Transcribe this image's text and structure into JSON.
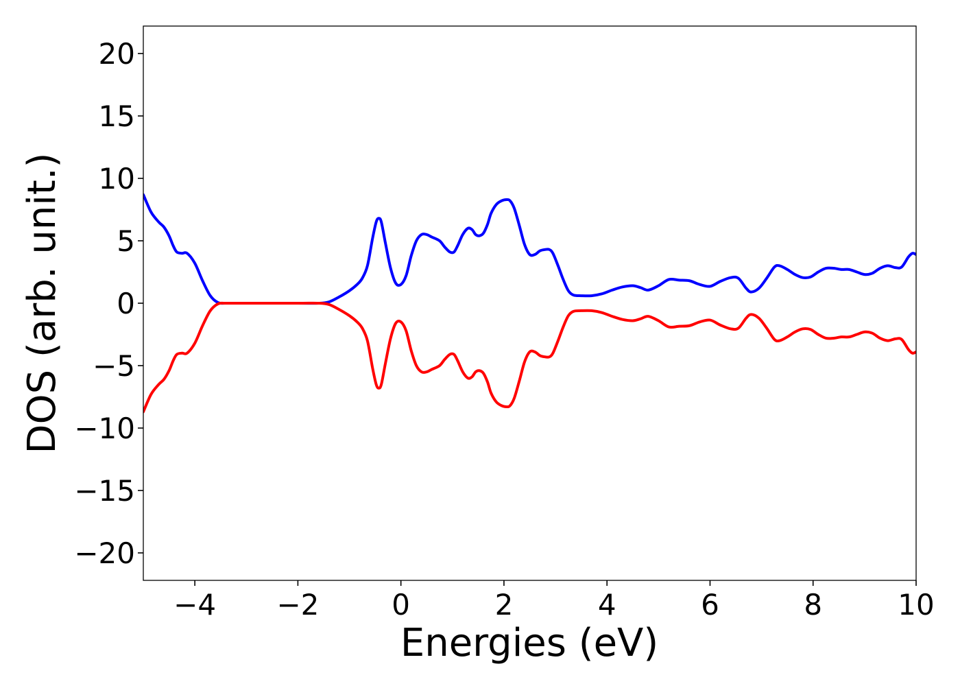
{
  "chart_data": {
    "type": "line",
    "xlabel": "Energies (eV)",
    "ylabel": "DOS (arb. unit.)",
    "xlim": [
      -5,
      10
    ],
    "ylim": [
      -22.2,
      22.2
    ],
    "xticks": [
      -4,
      -2,
      0,
      2,
      4,
      6,
      8,
      10
    ],
    "yticks": [
      20,
      15,
      10,
      5,
      0,
      -5,
      -10,
      -15,
      -20
    ],
    "xtick_labels": [
      "−4",
      "−2",
      "0",
      "2",
      "4",
      "6",
      "8",
      "10"
    ],
    "ytick_labels": [
      "20",
      "15",
      "10",
      "5",
      "0",
      "−5",
      "−10",
      "−15",
      "−20"
    ],
    "grid": false,
    "legend": "none",
    "series": [
      {
        "color": "#0000ff",
        "x": [
          -5.0,
          -4.85,
          -4.7,
          -4.6,
          -4.5,
          -4.42,
          -4.35,
          -4.25,
          -4.15,
          -4.0,
          -3.85,
          -3.7,
          -3.55,
          -3.4,
          -3.0,
          -2.0,
          -1.6,
          -1.4,
          -1.2,
          -1.0,
          -0.85,
          -0.75,
          -0.65,
          -0.55,
          -0.48,
          -0.43,
          -0.38,
          -0.3,
          -0.2,
          -0.1,
          0.0,
          0.1,
          0.2,
          0.3,
          0.4,
          0.5,
          0.6,
          0.75,
          0.85,
          0.95,
          1.03,
          1.1,
          1.2,
          1.3,
          1.38,
          1.45,
          1.52,
          1.6,
          1.68,
          1.75,
          1.85,
          1.95,
          2.05,
          2.12,
          2.2,
          2.3,
          2.4,
          2.5,
          2.6,
          2.7,
          2.8,
          2.88,
          2.95,
          3.05,
          3.15,
          3.25,
          3.35,
          3.5,
          3.7,
          3.9,
          4.1,
          4.3,
          4.5,
          4.65,
          4.8,
          5.0,
          5.2,
          5.4,
          5.6,
          5.8,
          6.0,
          6.2,
          6.4,
          6.55,
          6.7,
          6.8,
          6.95,
          7.1,
          7.25,
          7.35,
          7.5,
          7.65,
          7.8,
          7.95,
          8.1,
          8.25,
          8.4,
          8.55,
          8.7,
          8.85,
          9.0,
          9.15,
          9.3,
          9.45,
          9.6,
          9.72,
          9.85,
          9.93,
          10.0
        ],
        "y": [
          8.7,
          7.3,
          6.5,
          6.1,
          5.4,
          4.6,
          4.1,
          4.0,
          4.0,
          3.2,
          1.8,
          0.6,
          0.05,
          0.0,
          0.0,
          0.0,
          0.0,
          0.1,
          0.5,
          1.0,
          1.5,
          2.0,
          3.0,
          5.2,
          6.5,
          6.8,
          6.5,
          4.8,
          2.8,
          1.6,
          1.5,
          2.2,
          3.8,
          5.0,
          5.5,
          5.5,
          5.3,
          5.0,
          4.5,
          4.1,
          4.1,
          4.6,
          5.5,
          6.0,
          5.9,
          5.5,
          5.4,
          5.6,
          6.3,
          7.2,
          7.9,
          8.2,
          8.3,
          8.2,
          7.6,
          6.2,
          4.7,
          3.9,
          3.9,
          4.2,
          4.3,
          4.3,
          4.0,
          3.0,
          1.9,
          1.0,
          0.65,
          0.6,
          0.6,
          0.75,
          1.05,
          1.3,
          1.4,
          1.25,
          1.05,
          1.4,
          1.9,
          1.85,
          1.8,
          1.5,
          1.35,
          1.75,
          2.05,
          2.0,
          1.2,
          0.9,
          1.2,
          2.0,
          2.9,
          3.0,
          2.7,
          2.3,
          2.05,
          2.1,
          2.5,
          2.8,
          2.8,
          2.7,
          2.7,
          2.5,
          2.3,
          2.4,
          2.8,
          3.0,
          2.85,
          2.9,
          3.7,
          4.0,
          3.9
        ]
      },
      {
        "color": "#ff0000",
        "x": [
          -5.0,
          -4.85,
          -4.7,
          -4.6,
          -4.5,
          -4.42,
          -4.35,
          -4.25,
          -4.15,
          -4.0,
          -3.85,
          -3.7,
          -3.55,
          -3.4,
          -3.0,
          -2.0,
          -1.6,
          -1.4,
          -1.2,
          -1.0,
          -0.85,
          -0.75,
          -0.65,
          -0.55,
          -0.48,
          -0.43,
          -0.38,
          -0.3,
          -0.2,
          -0.1,
          0.0,
          0.1,
          0.2,
          0.3,
          0.4,
          0.5,
          0.6,
          0.75,
          0.85,
          0.95,
          1.03,
          1.1,
          1.2,
          1.3,
          1.38,
          1.45,
          1.52,
          1.6,
          1.68,
          1.75,
          1.85,
          1.95,
          2.05,
          2.12,
          2.2,
          2.3,
          2.4,
          2.5,
          2.6,
          2.7,
          2.8,
          2.88,
          2.95,
          3.05,
          3.15,
          3.25,
          3.35,
          3.5,
          3.7,
          3.9,
          4.1,
          4.3,
          4.5,
          4.65,
          4.8,
          5.0,
          5.2,
          5.4,
          5.6,
          5.8,
          6.0,
          6.2,
          6.4,
          6.55,
          6.7,
          6.8,
          6.95,
          7.1,
          7.25,
          7.35,
          7.5,
          7.65,
          7.8,
          7.95,
          8.1,
          8.25,
          8.4,
          8.55,
          8.7,
          8.85,
          9.0,
          9.15,
          9.3,
          9.45,
          9.6,
          9.72,
          9.85,
          9.93,
          10.0
        ],
        "y": [
          -8.7,
          -7.3,
          -6.5,
          -6.1,
          -5.4,
          -4.6,
          -4.1,
          -4.0,
          -4.0,
          -3.2,
          -1.8,
          -0.6,
          -0.05,
          0.0,
          0.0,
          0.0,
          0.0,
          -0.1,
          -0.5,
          -1.0,
          -1.5,
          -2.0,
          -3.0,
          -5.2,
          -6.5,
          -6.8,
          -6.5,
          -4.8,
          -2.8,
          -1.6,
          -1.5,
          -2.2,
          -3.8,
          -5.0,
          -5.5,
          -5.5,
          -5.3,
          -5.0,
          -4.5,
          -4.1,
          -4.1,
          -4.6,
          -5.5,
          -6.0,
          -5.9,
          -5.5,
          -5.4,
          -5.6,
          -6.3,
          -7.2,
          -7.9,
          -8.2,
          -8.3,
          -8.2,
          -7.6,
          -6.2,
          -4.7,
          -3.9,
          -3.9,
          -4.2,
          -4.3,
          -4.3,
          -4.0,
          -3.0,
          -1.9,
          -1.0,
          -0.65,
          -0.6,
          -0.6,
          -0.75,
          -1.05,
          -1.3,
          -1.4,
          -1.25,
          -1.05,
          -1.4,
          -1.9,
          -1.85,
          -1.8,
          -1.5,
          -1.35,
          -1.75,
          -2.05,
          -2.0,
          -1.2,
          -0.9,
          -1.2,
          -2.0,
          -2.9,
          -3.0,
          -2.7,
          -2.3,
          -2.05,
          -2.1,
          -2.5,
          -2.8,
          -2.8,
          -2.7,
          -2.7,
          -2.5,
          -2.3,
          -2.4,
          -2.8,
          -3.0,
          -2.85,
          -2.9,
          -3.7,
          -4.0,
          -3.9
        ]
      }
    ]
  }
}
